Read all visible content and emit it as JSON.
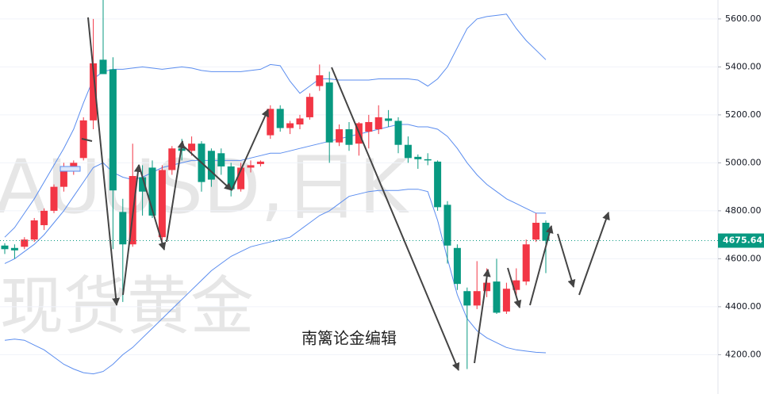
{
  "chart_data": {
    "type": "candlestick",
    "watermark": "XAUUSD,日K",
    "watermark_title": "现货黄金",
    "editor": "南篱论金编辑",
    "up_color": "#f23645",
    "down_color": "#089981",
    "band_color": "#5b8def",
    "ylim": [
      4036,
      5679
    ],
    "yticks": [
      {
        "value": 4200,
        "label": "4200.00"
      },
      {
        "value": 4400,
        "label": "4400.00"
      },
      {
        "value": 4600,
        "label": "4600.00"
      },
      {
        "value": 4800,
        "label": "4800.00"
      },
      {
        "value": 5000,
        "label": "5000.00"
      },
      {
        "value": 5200,
        "label": "5200.00"
      },
      {
        "value": 5400,
        "label": "5400.00"
      },
      {
        "value": 5600,
        "label": "5600.00"
      }
    ],
    "grid": true,
    "current_price": 4675.64,
    "open": [
      4655,
      4645,
      4650,
      4680,
      4740,
      4800,
      4900,
      4970,
      5020,
      5177,
      5430,
      5390,
      4795,
      4660,
      4940,
      4980,
      4690,
      4970,
      5060,
      5050,
      5080,
      5050,
      5040,
      4985,
      4890,
      4980,
      4995,
      5115,
      5225,
      5145,
      5160,
      5190,
      5320,
      5335,
      5085,
      5140,
      5080,
      5130,
      5140,
      5185,
      5175,
      5075,
      5025,
      5015,
      5005,
      4825,
      4645,
      4465,
      4405,
      4465,
      4505,
      4380,
      4470,
      4505,
      4680,
      4750
    ],
    "high": [
      4665,
      4660,
      4690,
      4770,
      4810,
      4910,
      5000,
      5010,
      5190,
      5600,
      5680,
      5440,
      4850,
      5080,
      4990,
      5010,
      4990,
      5070,
      5100,
      5110,
      5090,
      5060,
      5060,
      5000,
      5000,
      5010,
      5010,
      5240,
      5240,
      5175,
      5200,
      5290,
      5410,
      5380,
      5160,
      5170,
      5170,
      5200,
      5240,
      5220,
      5190,
      5110,
      5035,
      5040,
      5010,
      4840,
      4660,
      4480,
      4590,
      4560,
      4600,
      4500,
      4560,
      4680,
      4790,
      4760
    ],
    "low": [
      4620,
      4600,
      4640,
      4670,
      4720,
      4790,
      4880,
      4950,
      5010,
      5140,
      5380,
      4640,
      4420,
      4650,
      4780,
      4770,
      4660,
      4950,
      5010,
      5030,
      4880,
      4900,
      4950,
      4860,
      4880,
      4960,
      4985,
      5100,
      5130,
      5120,
      5140,
      5180,
      5300,
      5000,
      5070,
      5050,
      5030,
      5060,
      5120,
      5150,
      5040,
      5000,
      4975,
      4990,
      4800,
      4580,
      4470,
      4140,
      4390,
      4440,
      4370,
      4370,
      4440,
      4490,
      4670,
      4540
    ],
    "close": [
      4640,
      4635,
      4680,
      4760,
      4800,
      4900,
      4970,
      5000,
      5177,
      5415,
      5370,
      4885,
      4660,
      4945,
      4880,
      4780,
      4970,
      5060,
      5050,
      5080,
      4920,
      4930,
      4985,
      4890,
      4980,
      4990,
      5005,
      5225,
      5145,
      5165,
      5185,
      5275,
      5365,
      5085,
      5140,
      5075,
      5165,
      5170,
      5190,
      5175,
      5075,
      5020,
      5015,
      5010,
      4815,
      4655,
      4495,
      4405,
      4465,
      4500,
      4375,
      4475,
      4510,
      4660,
      4750,
      4675
    ],
    "bands": [
      {
        "values": [
          4690,
          4730,
          4790,
          4850,
          4920,
          4990,
          5060,
          5140,
          5250,
          5350,
          5380,
          5390,
          5390,
          5395,
          5400,
          5395,
          5390,
          5395,
          5400,
          5395,
          5385,
          5380,
          5380,
          5380,
          5380,
          5385,
          5390,
          5410,
          5405,
          5340,
          5290,
          5320,
          5350,
          5350,
          5345,
          5345,
          5345,
          5345,
          5350,
          5350,
          5350,
          5350,
          5345,
          5320,
          5350,
          5400,
          5480,
          5560,
          5600,
          5610,
          5615,
          5620,
          5560,
          5510,
          5470,
          5430
        ]
      },
      {
        "values": [
          4580,
          4600,
          4630,
          4660,
          4700,
          4750,
          4800,
          4860,
          4920,
          4980,
          5000,
          4960,
          4940,
          4930,
          4940,
          4960,
          4980,
          4990,
          5000,
          5010,
          5010,
          5010,
          5010,
          5010,
          5010,
          5020,
          5030,
          5040,
          5040,
          5050,
          5060,
          5070,
          5080,
          5090,
          5100,
          5110,
          5120,
          5130,
          5140,
          5150,
          5160,
          5160,
          5150,
          5150,
          5140,
          5110,
          5060,
          5000,
          4950,
          4910,
          4880,
          4850,
          4830,
          4810,
          4790,
          4790
        ]
      },
      {
        "values": [
          4260,
          4265,
          4260,
          4240,
          4220,
          4190,
          4160,
          4140,
          4125,
          4120,
          4130,
          4160,
          4200,
          4230,
          4270,
          4310,
          4350,
          4390,
          4430,
          4470,
          4510,
          4550,
          4580,
          4610,
          4630,
          4650,
          4660,
          4670,
          4680,
          4690,
          4720,
          4750,
          4780,
          4800,
          4830,
          4860,
          4870,
          4880,
          4885,
          4885,
          4885,
          4890,
          4890,
          4880,
          4760,
          4600,
          4450,
          4350,
          4300,
          4270,
          4250,
          4230,
          4220,
          4215,
          4210,
          4208
        ]
      }
    ]
  }
}
